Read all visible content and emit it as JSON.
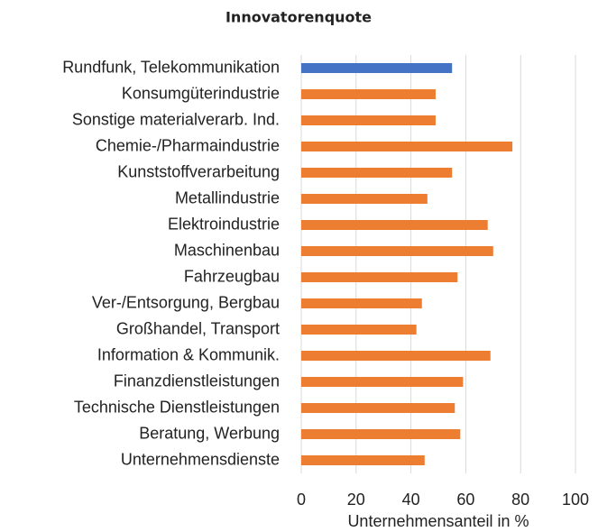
{
  "chart_data": {
    "type": "barh",
    "title": "Innovatorenquote",
    "categories": [
      "Rundfunk, Telekommunikation",
      "Konsumgüterindustrie",
      "Sonstige materialverarb. Ind.",
      "Chemie-/Pharmaindustrie",
      "Kunststoffverarbeitung",
      "Metallindustrie",
      "Elektroindustrie",
      "Maschinenbau",
      "Fahrzeugbau",
      "Ver-/Entsorgung, Bergbau",
      "Großhandel, Transport",
      "Information & Kommunik.",
      "Finanzdienstleistungen",
      "Technische Dienstleistungen",
      "Beratung, Werbung",
      "Unternehmensdienste"
    ],
    "values": [
      55,
      49,
      49,
      77,
      55,
      46,
      68,
      70,
      57,
      44,
      42,
      69,
      59,
      56,
      58,
      45
    ],
    "colors": [
      "#4472c4",
      "#ed7d31",
      "#ed7d31",
      "#ed7d31",
      "#ed7d31",
      "#ed7d31",
      "#ed7d31",
      "#ed7d31",
      "#ed7d31",
      "#ed7d31",
      "#ed7d31",
      "#ed7d31",
      "#ed7d31",
      "#ed7d31",
      "#ed7d31",
      "#ed7d31"
    ],
    "xlabel": "Unternehmensanteil in %",
    "xlim": [
      0,
      100
    ],
    "xticks": [
      0,
      20,
      40,
      60,
      80,
      100
    ],
    "grid": true
  }
}
